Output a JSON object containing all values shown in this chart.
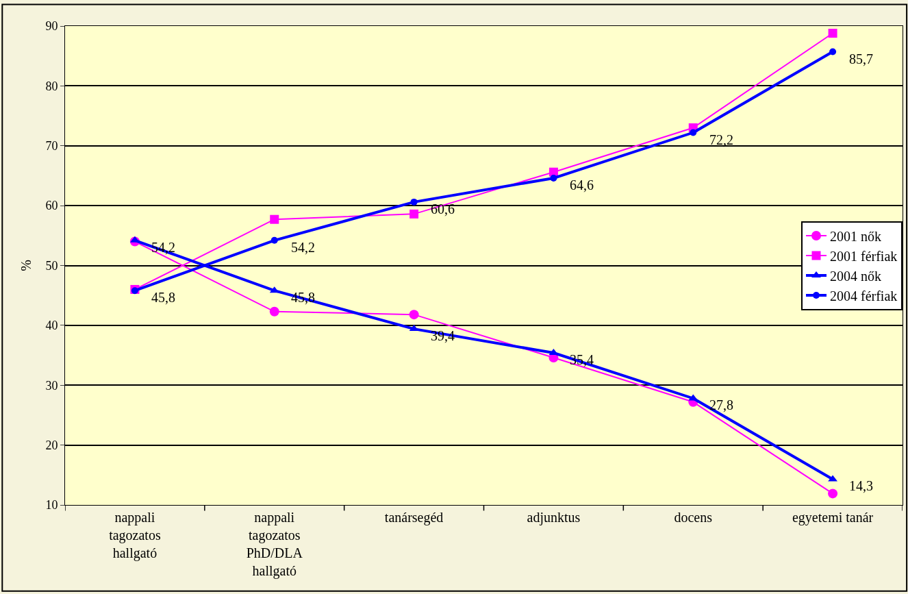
{
  "chart_data": {
    "type": "line",
    "ylabel": "%",
    "categories": [
      "nappali tagozatos hallgató",
      "nappali tagozatos PhD/DLA hallgató",
      "tanársegéd",
      "adjunktus",
      "docens",
      "egyetemi tanár"
    ],
    "ylim": [
      10,
      90
    ],
    "yticks": [
      10,
      20,
      30,
      40,
      50,
      60,
      70,
      80,
      90
    ],
    "grid": "y",
    "legend": "right",
    "series": [
      {
        "name": "2001 nők",
        "color": "#ff00ff",
        "marker": "circle",
        "values": [
          54.0,
          42.3,
          41.8,
          34.6,
          27.2,
          11.9
        ]
      },
      {
        "name": "2001 férfiak",
        "color": "#ff00ff",
        "marker": "square",
        "values": [
          46.0,
          57.7,
          58.6,
          65.6,
          73.0,
          88.8
        ]
      },
      {
        "name": "2004 nők",
        "color": "#0000ff",
        "marker": "triangle",
        "values": [
          54.2,
          45.8,
          39.4,
          35.4,
          27.8,
          14.3
        ],
        "value_labels": [
          "54,2",
          "45,8",
          "39,4",
          "35,4",
          "27,8",
          "14,3"
        ]
      },
      {
        "name": "2004 férfiak",
        "color": "#0000ff",
        "marker": "circle",
        "values": [
          45.8,
          54.2,
          60.6,
          64.6,
          72.2,
          85.7
        ],
        "value_labels": [
          "45,8",
          "54,2",
          "60,6",
          "64,6",
          "72,2",
          "85,7"
        ]
      }
    ]
  }
}
